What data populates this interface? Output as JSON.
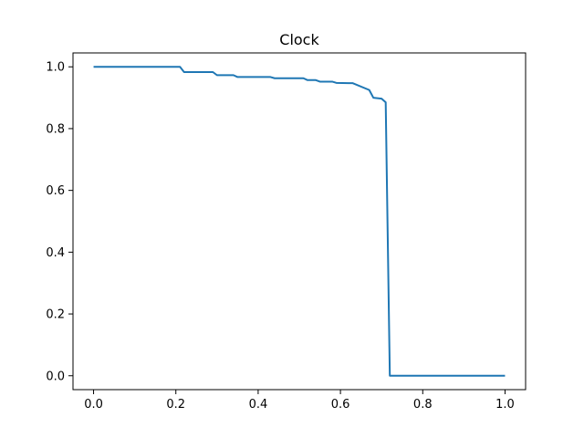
{
  "chart_data": {
    "type": "line",
    "title": "Clock",
    "xlabel": "",
    "ylabel": "",
    "xlim": [
      -0.05,
      1.05
    ],
    "ylim": [
      -0.045,
      1.045
    ],
    "x_ticks": [
      0.0,
      0.2,
      0.4,
      0.6,
      0.8,
      1.0
    ],
    "x_tick_labels": [
      "0.0",
      "0.2",
      "0.4",
      "0.6",
      "0.8",
      "1.0"
    ],
    "y_ticks": [
      0.0,
      0.2,
      0.4,
      0.6,
      0.8,
      1.0
    ],
    "y_tick_labels": [
      "0.0",
      "0.2",
      "0.4",
      "0.6",
      "0.8",
      "1.0"
    ],
    "grid": false,
    "legend": "none",
    "series": [
      {
        "color": "#1f77b4",
        "x": [
          0.0,
          0.2,
          0.21,
          0.22,
          0.29,
          0.3,
          0.34,
          0.35,
          0.43,
          0.44,
          0.51,
          0.52,
          0.54,
          0.55,
          0.58,
          0.59,
          0.63,
          0.67,
          0.68,
          0.7,
          0.71,
          0.72,
          0.73,
          1.0
        ],
        "y": [
          1.0,
          1.0,
          1.0,
          0.983,
          0.983,
          0.973,
          0.973,
          0.967,
          0.967,
          0.963,
          0.963,
          0.957,
          0.957,
          0.952,
          0.952,
          0.948,
          0.947,
          0.925,
          0.9,
          0.897,
          0.885,
          0.0,
          0.0,
          0.0
        ]
      }
    ]
  }
}
